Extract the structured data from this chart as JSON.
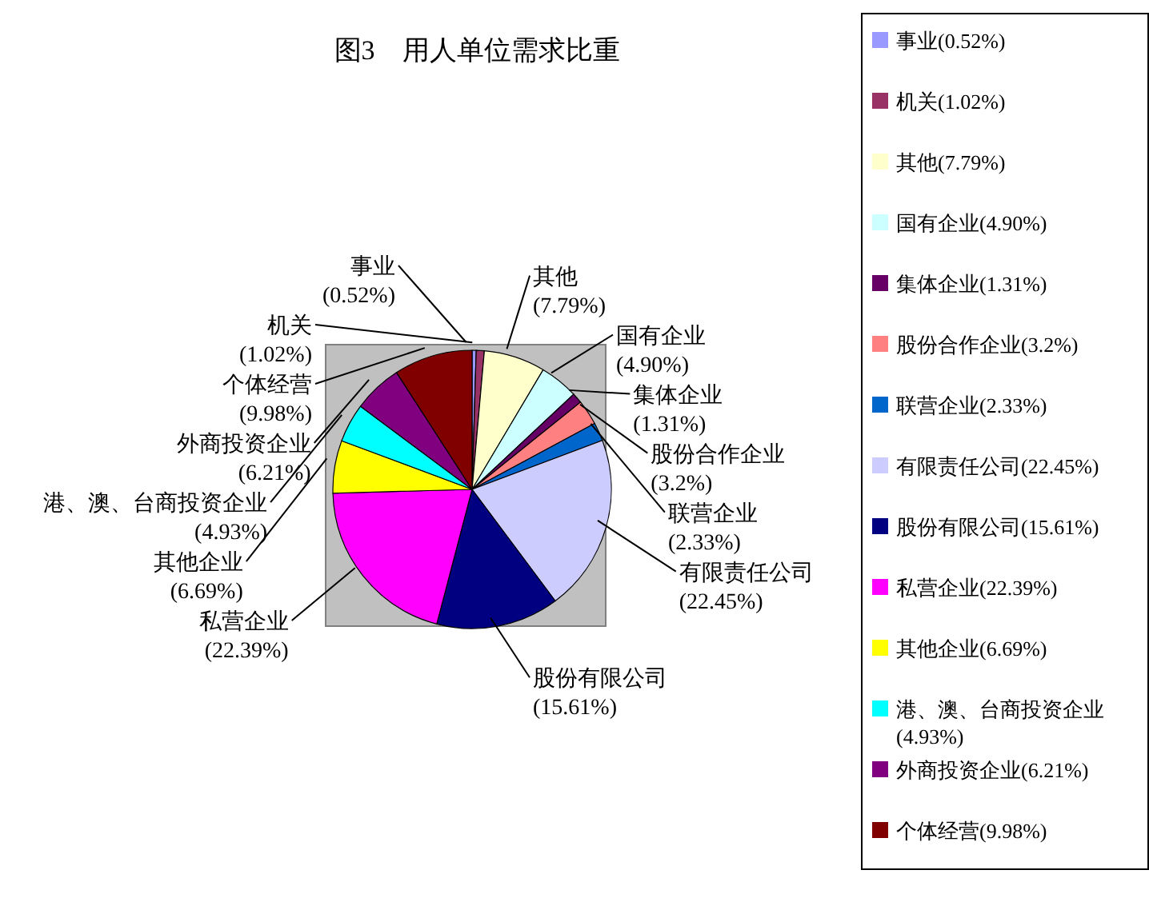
{
  "chart_data": {
    "type": "pie",
    "title": "图3　用人单位需求比重",
    "categories": [
      "事业",
      "机关",
      "其他",
      "国有企业",
      "集体企业",
      "股份合作企业",
      "联营企业",
      "有限责任公司",
      "股份有限公司",
      "私营企业",
      "其他企业",
      "港、澳、台商投资企业",
      "外商投资企业",
      "个体经营"
    ],
    "values": [
      0.52,
      1.02,
      7.79,
      4.9,
      1.31,
      3.2,
      2.33,
      22.45,
      15.61,
      22.39,
      6.69,
      4.93,
      6.21,
      9.98
    ],
    "value_labels": [
      "(0.52%)",
      "(1.02%)",
      "(7.79%)",
      "(4.90%)",
      "(1.31%)",
      "(3.2%)",
      "(2.33%)",
      "(22.45%)",
      "(15.61%)",
      "(22.39%)",
      "(6.69%)",
      "(4.93%)",
      "(6.21%)",
      "(9.98%)"
    ],
    "colors": [
      "#9999ff",
      "#993366",
      "#ffffcc",
      "#ccffff",
      "#660066",
      "#ff8080",
      "#0066cc",
      "#ccccff",
      "#000080",
      "#ff00ff",
      "#ffff00",
      "#00ffff",
      "#800080",
      "#800000"
    ],
    "legend": "right"
  }
}
